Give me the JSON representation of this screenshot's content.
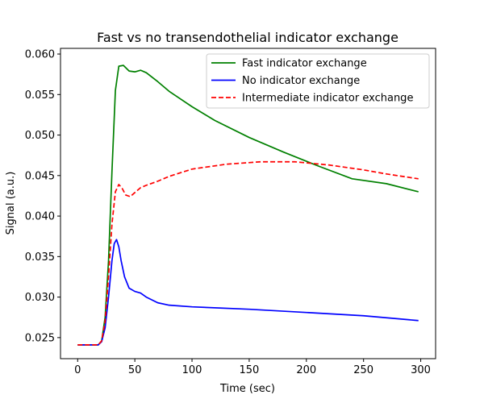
{
  "chart_data": {
    "type": "line",
    "title": "Fast vs no transendothelial indicator exchange",
    "xlabel": "Time (sec)",
    "ylabel": "Signal (a.u.)",
    "xlim": [
      -15,
      313
    ],
    "ylim": [
      0.0224,
      0.0607
    ],
    "xticks": [
      0,
      50,
      100,
      150,
      200,
      250,
      300
    ],
    "yticks": [
      0.025,
      0.03,
      0.035,
      0.04,
      0.045,
      0.05,
      0.055,
      0.06
    ],
    "ytick_labels": [
      "0.025",
      "0.030",
      "0.035",
      "0.040",
      "0.045",
      "0.050",
      "0.055",
      "0.060"
    ],
    "grid": false,
    "legend_position": "top-right",
    "series": [
      {
        "name": "Fast indicator exchange",
        "color": "#008000",
        "dash": "solid",
        "x": [
          0,
          18,
          21,
          24,
          27,
          30,
          33,
          36,
          40,
          45,
          50,
          55,
          60,
          70,
          80,
          100,
          120,
          150,
          180,
          210,
          240,
          270,
          298
        ],
        "y": [
          0.0241,
          0.0241,
          0.0246,
          0.0275,
          0.0345,
          0.0455,
          0.0555,
          0.0585,
          0.0586,
          0.0579,
          0.0578,
          0.058,
          0.0577,
          0.0566,
          0.0554,
          0.0535,
          0.0518,
          0.0497,
          0.0479,
          0.0462,
          0.0446,
          0.044,
          0.043
        ]
      },
      {
        "name": "No indicator exchange",
        "color": "#0000ff",
        "dash": "solid",
        "x": [
          0,
          18,
          21,
          24,
          27,
          30,
          32,
          34,
          36,
          38,
          41,
          45,
          50,
          55,
          60,
          70,
          80,
          100,
          150,
          200,
          250,
          298
        ],
        "y": [
          0.0241,
          0.0241,
          0.0245,
          0.0262,
          0.03,
          0.0345,
          0.0366,
          0.0371,
          0.0362,
          0.0345,
          0.0325,
          0.0311,
          0.0307,
          0.0305,
          0.03,
          0.0293,
          0.029,
          0.0288,
          0.0285,
          0.0281,
          0.0277,
          0.0271
        ]
      },
      {
        "name": "Intermediate indicator exchange",
        "color": "#ff0000",
        "dash": "dashed",
        "x": [
          0,
          18,
          21,
          24,
          27,
          30,
          33,
          36,
          39,
          42,
          46,
          50,
          55,
          60,
          70,
          80,
          100,
          130,
          160,
          190,
          220,
          250,
          270,
          298
        ],
        "y": [
          0.0241,
          0.0241,
          0.0246,
          0.027,
          0.0325,
          0.039,
          0.043,
          0.0439,
          0.0434,
          0.0426,
          0.0424,
          0.0429,
          0.0435,
          0.0438,
          0.0443,
          0.0449,
          0.0458,
          0.0464,
          0.0467,
          0.0467,
          0.0463,
          0.0457,
          0.0452,
          0.0446
        ]
      }
    ]
  }
}
